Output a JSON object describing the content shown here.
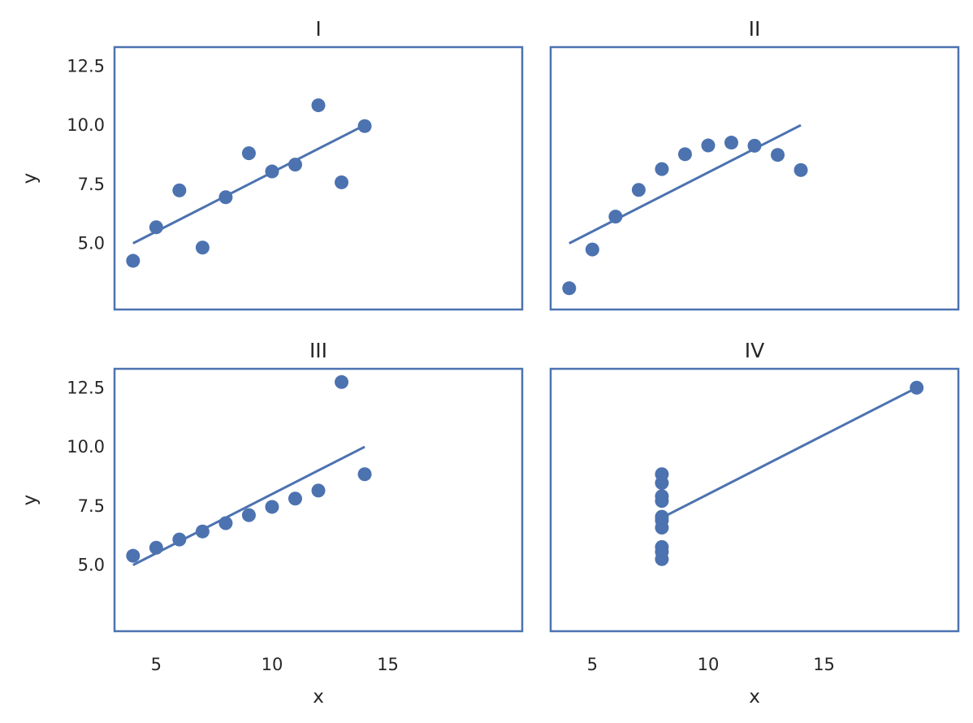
{
  "chart_data": {
    "type": "scatter",
    "layout": "2x2 grid, shared x and y axes",
    "xlabel": "x",
    "ylabel": "y",
    "xlim": [
      3.2,
      20.8
    ],
    "ylim": [
      2.2,
      13.3
    ],
    "xticks": [
      5,
      10,
      15
    ],
    "yticks": [
      5.0,
      7.5,
      10.0,
      12.5
    ],
    "grid": false,
    "colors": {
      "points": "#4c72b0",
      "line": "#4c72b0",
      "frame": "#4c72b0",
      "text": "#262626"
    },
    "panels": [
      {
        "title": "I",
        "x": [
          10,
          8,
          13,
          9,
          11,
          14,
          6,
          4,
          12,
          7,
          5
        ],
        "y": [
          8.04,
          6.95,
          7.58,
          8.81,
          8.33,
          9.96,
          7.24,
          4.26,
          10.84,
          4.82,
          5.68
        ],
        "fit_line": {
          "x": [
            4,
            14
          ],
          "y": [
            5.0,
            10.0
          ]
        }
      },
      {
        "title": "II",
        "x": [
          10,
          8,
          13,
          9,
          11,
          14,
          6,
          4,
          12,
          7,
          5
        ],
        "y": [
          9.14,
          8.14,
          8.74,
          8.77,
          9.26,
          8.1,
          6.13,
          3.1,
          9.13,
          7.26,
          4.74
        ],
        "fit_line": {
          "x": [
            4,
            14
          ],
          "y": [
            5.0,
            10.0
          ]
        }
      },
      {
        "title": "III",
        "x": [
          10,
          8,
          13,
          9,
          11,
          14,
          6,
          4,
          12,
          7,
          5
        ],
        "y": [
          7.46,
          6.77,
          12.74,
          7.11,
          7.81,
          8.84,
          6.08,
          5.39,
          8.15,
          6.42,
          5.73
        ],
        "fit_line": {
          "x": [
            4,
            14
          ],
          "y": [
            5.0,
            10.0
          ]
        }
      },
      {
        "title": "IV",
        "x": [
          8,
          8,
          8,
          8,
          8,
          8,
          8,
          19,
          8,
          8,
          8
        ],
        "y": [
          6.58,
          5.76,
          7.71,
          8.84,
          8.47,
          7.04,
          5.25,
          12.5,
          5.56,
          7.91,
          6.89
        ],
        "fit_line": {
          "x": [
            8,
            19
          ],
          "y": [
            7.0,
            12.5
          ]
        }
      }
    ]
  }
}
